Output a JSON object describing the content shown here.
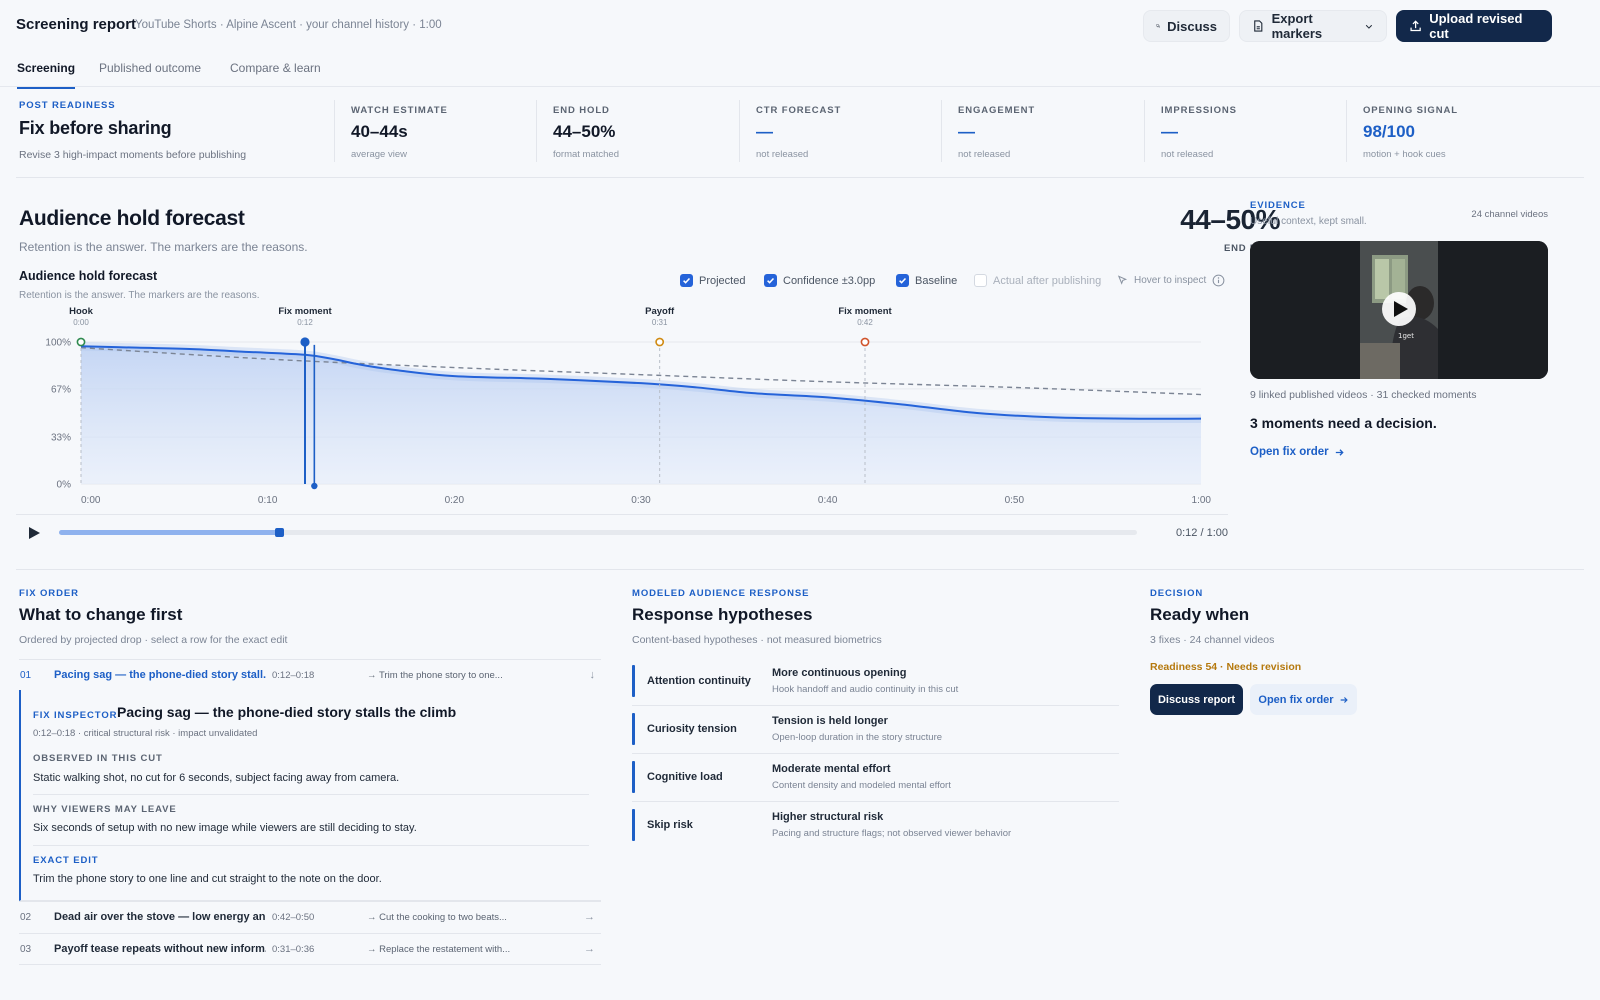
{
  "header": {
    "title": "Screening report",
    "subtitle": "YouTube Shorts · Alpine Ascent · your channel history · 1:00",
    "discuss_label": "Discuss",
    "export_label": "Export markers",
    "upload_label": "Upload revised cut"
  },
  "tabs": [
    {
      "label": "Screening",
      "active": true
    },
    {
      "label": "Published outcome",
      "active": false
    },
    {
      "label": "Compare & learn",
      "active": false
    }
  ],
  "readiness": {
    "eyebrow": "POST READINESS",
    "title": "Fix before sharing",
    "sub": "Revise 3 high-impact moments before publishing"
  },
  "metrics": [
    {
      "label": "WATCH ESTIMATE",
      "value": "40–44s",
      "sub": "average view"
    },
    {
      "label": "END HOLD",
      "value": "44–50%",
      "sub": "format matched"
    },
    {
      "label": "CTR FORECAST",
      "value": "—",
      "sub": "not released"
    },
    {
      "label": "ENGAGEMENT",
      "value": "—",
      "sub": "not released"
    },
    {
      "label": "IMPRESSIONS",
      "value": "—",
      "sub": "not released"
    },
    {
      "label": "OPENING SIGNAL",
      "value": "98/100",
      "sub": "motion + hook cues"
    }
  ],
  "forecast": {
    "title": "Audience hold forecast",
    "desc": "Retention is the answer. The markers are the reasons.",
    "big_value": "44–50%",
    "big_label": "END HOLD",
    "chart_title": "Audience hold forecast",
    "chart_desc": "Retention is the answer. The markers are the reasons.",
    "legend": {
      "projected": "Projected",
      "confidence": "Confidence ±3.0pp",
      "baseline": "Baseline",
      "actual": "Actual after publishing",
      "hover": "Hover to inspect"
    }
  },
  "chart_data": {
    "type": "line",
    "xlabel": "",
    "ylabel": "",
    "x_ticks": [
      "0:00",
      "0:10",
      "0:20",
      "0:30",
      "0:40",
      "0:50",
      "1:00"
    ],
    "y_ticks": [
      "100%",
      "67%",
      "33%",
      "0%"
    ],
    "xlim": [
      0,
      60
    ],
    "ylim": [
      0,
      100
    ],
    "series": [
      {
        "name": "Projected",
        "x": [
          0,
          3,
          6,
          9,
          12,
          13.5,
          15,
          17,
          20,
          25,
          30,
          33,
          36,
          40,
          44,
          48,
          52,
          56,
          60
        ],
        "y": [
          97,
          96,
          95,
          93,
          91,
          88,
          84,
          80,
          76,
          74,
          71,
          68,
          64,
          61,
          56,
          50,
          47,
          46,
          46
        ]
      },
      {
        "name": "Baseline",
        "x": [
          0,
          10,
          20,
          30,
          40,
          50,
          60
        ],
        "y": [
          96,
          88,
          82,
          77,
          72,
          68,
          63
        ]
      }
    ],
    "confidence_pp": 3.0,
    "markers": [
      {
        "label": "Hook",
        "time": "0:00",
        "x": 0,
        "y": 100,
        "color": "#2f8a4f"
      },
      {
        "label": "Fix moment",
        "time": "0:12",
        "x": 12,
        "y": 100,
        "color": "#1d5fc6"
      },
      {
        "label": "Payoff",
        "time": "0:31",
        "x": 31,
        "y": 100,
        "color": "#d08a12"
      },
      {
        "label": "Fix moment",
        "time": "0:42",
        "x": 42,
        "y": 100,
        "color": "#d0542c"
      }
    ],
    "playhead": 12.5
  },
  "playback": {
    "position": "0:12 / 1:00",
    "progress": 0.2
  },
  "evidence": {
    "eyebrow": "EVIDENCE",
    "sub": "Useful context, kept small.",
    "count": "24 channel videos",
    "video_caption": "1get",
    "meta": "9 linked published videos · 31 checked moments",
    "decision": "3 moments need a decision.",
    "link": "Open fix order"
  },
  "fix_order": {
    "eyebrow": "FIX ORDER",
    "title": "What to change first",
    "desc": "Ordered by projected drop · select a row for the exact edit",
    "rows": [
      {
        "num": "01",
        "title": "Pacing sag — the phone-died story stall...",
        "time": "0:12–0:18",
        "action": "→ Trim the phone story to one...",
        "arrow": "↓"
      },
      {
        "num": "02",
        "title": "Dead air over the stove — low energy an...",
        "time": "0:42–0:50",
        "action": "→ Cut the cooking to two beats...",
        "arrow": "→"
      },
      {
        "num": "03",
        "title": "Payoff tease repeats without new inform...",
        "time": "0:31–0:36",
        "action": "→ Replace the restatement with...",
        "arrow": "→"
      }
    ],
    "inspector": {
      "eyebrow": "FIX INSPECTOR",
      "title": "Pacing sag — the phone-died story stalls the climb",
      "meta": "0:12–0:18 · critical structural risk · impact unvalidated",
      "observed_label": "OBSERVED IN THIS CUT",
      "observed": "Static walking shot, no cut for 6 seconds, subject facing away from camera.",
      "why_label": "WHY VIEWERS MAY LEAVE",
      "why": "Six seconds of setup with no new image while viewers are still deciding to stay.",
      "edit_label": "EXACT EDIT",
      "edit": "Trim the phone story to one line and cut straight to the note on the door."
    }
  },
  "responses": {
    "eyebrow": "MODELED AUDIENCE RESPONSE",
    "title": "Response hypotheses",
    "desc": "Content-based hypotheses · not measured biometrics",
    "rows": [
      {
        "label": "Attention continuity",
        "headline": "More continuous opening",
        "detail": "Hook handoff and audio continuity in this cut"
      },
      {
        "label": "Curiosity tension",
        "headline": "Tension is held longer",
        "detail": "Open-loop duration in the story structure"
      },
      {
        "label": "Cognitive load",
        "headline": "Moderate mental effort",
        "detail": "Content density and modeled mental effort"
      },
      {
        "label": "Skip risk",
        "headline": "Higher structural risk",
        "detail": "Pacing and structure flags; not observed viewer behavior"
      }
    ]
  },
  "decision": {
    "eyebrow": "DECISION",
    "title": "Ready when",
    "desc": "3 fixes · 24 channel videos",
    "status": "Readiness 54 · Needs revision",
    "btn_discuss": "Discuss report",
    "btn_open": "Open fix order"
  },
  "colors": {
    "accent": "#1d5fc6",
    "primary_button": "#12284a",
    "warning": "#b5790e"
  }
}
